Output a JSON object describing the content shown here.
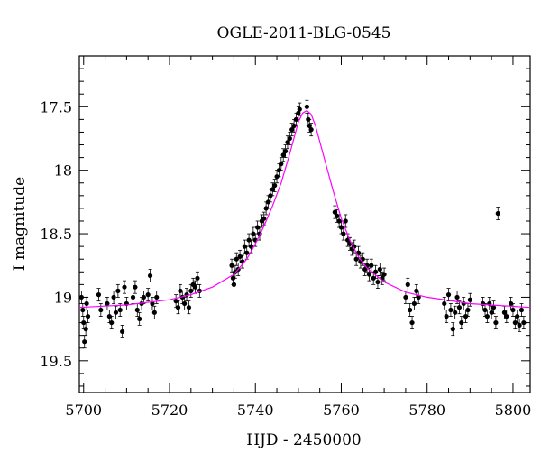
{
  "chart_data": {
    "type": "scatter",
    "title": "OGLE-2011-BLG-0545",
    "xlabel": "HJD - 2450000",
    "ylabel": "I magnitude",
    "xlim": [
      5699,
      5804
    ],
    "ylim": [
      19.75,
      17.1
    ],
    "y_inverted": true,
    "xticks": [
      "5700",
      "5720",
      "5740",
      "5760",
      "5780",
      "5800"
    ],
    "yticks": [
      "17.5",
      "18",
      "18.5",
      "19",
      "19.5"
    ],
    "grid": false,
    "colors": {
      "points": "#000000",
      "model": "#ff00ff"
    },
    "model": {
      "name": "",
      "x": [
        5699,
        5710,
        5720,
        5725,
        5730,
        5735,
        5738,
        5740,
        5742,
        5744,
        5746,
        5748,
        5750,
        5751,
        5752,
        5753,
        5754,
        5756,
        5758,
        5760,
        5762,
        5764,
        5766,
        5770,
        5775,
        5780,
        5790,
        5804
      ],
      "y": [
        19.08,
        19.06,
        19.02,
        18.98,
        18.92,
        18.82,
        18.7,
        18.58,
        18.44,
        18.28,
        18.1,
        17.87,
        17.62,
        17.55,
        17.53,
        17.56,
        17.65,
        17.9,
        18.15,
        18.38,
        18.55,
        18.68,
        18.77,
        18.88,
        18.96,
        19.0,
        19.05,
        19.08
      ]
    },
    "points": [
      {
        "x": 5699.5,
        "y": 19.0
      },
      {
        "x": 5699.8,
        "y": 19.1
      },
      {
        "x": 5700.0,
        "y": 19.2
      },
      {
        "x": 5700.2,
        "y": 19.35
      },
      {
        "x": 5700.5,
        "y": 19.25
      },
      {
        "x": 5700.7,
        "y": 19.05
      },
      {
        "x": 5701.0,
        "y": 19.15
      },
      {
        "x": 5703.5,
        "y": 18.98
      },
      {
        "x": 5704.0,
        "y": 19.1
      },
      {
        "x": 5705.5,
        "y": 19.05
      },
      {
        "x": 5706.0,
        "y": 19.15
      },
      {
        "x": 5706.5,
        "y": 19.2
      },
      {
        "x": 5707.0,
        "y": 19.0
      },
      {
        "x": 5707.5,
        "y": 19.12
      },
      {
        "x": 5708.0,
        "y": 18.95
      },
      {
        "x": 5708.5,
        "y": 19.1
      },
      {
        "x": 5709.0,
        "y": 19.27
      },
      {
        "x": 5709.5,
        "y": 18.92
      },
      {
        "x": 5710.0,
        "y": 19.05
      },
      {
        "x": 5711.5,
        "y": 19.0
      },
      {
        "x": 5712.0,
        "y": 18.92
      },
      {
        "x": 5712.5,
        "y": 19.1
      },
      {
        "x": 5713.0,
        "y": 19.17
      },
      {
        "x": 5713.5,
        "y": 19.05
      },
      {
        "x": 5714.0,
        "y": 19.0
      },
      {
        "x": 5715.0,
        "y": 18.98
      },
      {
        "x": 5715.5,
        "y": 18.83
      },
      {
        "x": 5716.0,
        "y": 19.05
      },
      {
        "x": 5716.5,
        "y": 19.12
      },
      {
        "x": 5717.0,
        "y": 19.0
      },
      {
        "x": 5721.5,
        "y": 19.03
      },
      {
        "x": 5722.0,
        "y": 19.08
      },
      {
        "x": 5722.5,
        "y": 18.95
      },
      {
        "x": 5723.0,
        "y": 19.0
      },
      {
        "x": 5723.5,
        "y": 19.05
      },
      {
        "x": 5724.0,
        "y": 18.98
      },
      {
        "x": 5724.5,
        "y": 19.08
      },
      {
        "x": 5725.0,
        "y": 18.95
      },
      {
        "x": 5725.5,
        "y": 18.9
      },
      {
        "x": 5726.0,
        "y": 18.92
      },
      {
        "x": 5726.5,
        "y": 18.85
      },
      {
        "x": 5727.0,
        "y": 18.95
      },
      {
        "x": 5734.5,
        "y": 18.75
      },
      {
        "x": 5734.8,
        "y": 18.85
      },
      {
        "x": 5735.0,
        "y": 18.9
      },
      {
        "x": 5735.3,
        "y": 18.8
      },
      {
        "x": 5735.6,
        "y": 18.7
      },
      {
        "x": 5736.0,
        "y": 18.78
      },
      {
        "x": 5736.4,
        "y": 18.68
      },
      {
        "x": 5737.0,
        "y": 18.72
      },
      {
        "x": 5737.5,
        "y": 18.6
      },
      {
        "x": 5738.0,
        "y": 18.65
      },
      {
        "x": 5738.5,
        "y": 18.55
      },
      {
        "x": 5739.0,
        "y": 18.6
      },
      {
        "x": 5739.5,
        "y": 18.5
      },
      {
        "x": 5740.0,
        "y": 18.55
      },
      {
        "x": 5740.5,
        "y": 18.45
      },
      {
        "x": 5741.0,
        "y": 18.5
      },
      {
        "x": 5741.5,
        "y": 18.4
      },
      {
        "x": 5742.0,
        "y": 18.38
      },
      {
        "x": 5742.5,
        "y": 18.3
      },
      {
        "x": 5743.0,
        "y": 18.25
      },
      {
        "x": 5743.5,
        "y": 18.2
      },
      {
        "x": 5744.0,
        "y": 18.15
      },
      {
        "x": 5744.5,
        "y": 18.12
      },
      {
        "x": 5745.0,
        "y": 18.05
      },
      {
        "x": 5745.5,
        "y": 18.0
      },
      {
        "x": 5746.0,
        "y": 17.95
      },
      {
        "x": 5746.5,
        "y": 17.88
      },
      {
        "x": 5747.0,
        "y": 17.85
      },
      {
        "x": 5747.5,
        "y": 17.78
      },
      {
        "x": 5748.0,
        "y": 17.75
      },
      {
        "x": 5748.5,
        "y": 17.68
      },
      {
        "x": 5749.0,
        "y": 17.65
      },
      {
        "x": 5749.5,
        "y": 17.6
      },
      {
        "x": 5750.0,
        "y": 17.55
      },
      {
        "x": 5750.3,
        "y": 17.52
      },
      {
        "x": 5752.0,
        "y": 17.5
      },
      {
        "x": 5752.3,
        "y": 17.6
      },
      {
        "x": 5752.6,
        "y": 17.65
      },
      {
        "x": 5753.0,
        "y": 17.68
      },
      {
        "x": 5758.5,
        "y": 18.33
      },
      {
        "x": 5759.0,
        "y": 18.36
      },
      {
        "x": 5759.5,
        "y": 18.4
      },
      {
        "x": 5760.0,
        "y": 18.45
      },
      {
        "x": 5760.5,
        "y": 18.5
      },
      {
        "x": 5761.0,
        "y": 18.4
      },
      {
        "x": 5761.5,
        "y": 18.55
      },
      {
        "x": 5762.0,
        "y": 18.58
      },
      {
        "x": 5762.5,
        "y": 18.62
      },
      {
        "x": 5763.0,
        "y": 18.6
      },
      {
        "x": 5763.5,
        "y": 18.7
      },
      {
        "x": 5764.0,
        "y": 18.65
      },
      {
        "x": 5764.5,
        "y": 18.72
      },
      {
        "x": 5765.0,
        "y": 18.7
      },
      {
        "x": 5765.5,
        "y": 18.78
      },
      {
        "x": 5766.0,
        "y": 18.75
      },
      {
        "x": 5766.5,
        "y": 18.82
      },
      {
        "x": 5767.0,
        "y": 18.75
      },
      {
        "x": 5767.5,
        "y": 18.85
      },
      {
        "x": 5768.0,
        "y": 18.8
      },
      {
        "x": 5768.5,
        "y": 18.88
      },
      {
        "x": 5769.0,
        "y": 18.78
      },
      {
        "x": 5769.5,
        "y": 18.85
      },
      {
        "x": 5770.0,
        "y": 18.82
      },
      {
        "x": 5775.0,
        "y": 19.0
      },
      {
        "x": 5775.5,
        "y": 18.9
      },
      {
        "x": 5776.0,
        "y": 19.1
      },
      {
        "x": 5776.5,
        "y": 19.2
      },
      {
        "x": 5777.0,
        "y": 19.05
      },
      {
        "x": 5777.5,
        "y": 18.95
      },
      {
        "x": 5778.0,
        "y": 19.0
      },
      {
        "x": 5784.0,
        "y": 19.05
      },
      {
        "x": 5784.5,
        "y": 19.15
      },
      {
        "x": 5785.0,
        "y": 18.98
      },
      {
        "x": 5785.5,
        "y": 19.1
      },
      {
        "x": 5786.0,
        "y": 19.25
      },
      {
        "x": 5786.5,
        "y": 19.12
      },
      {
        "x": 5787.0,
        "y": 19.0
      },
      {
        "x": 5787.5,
        "y": 19.08
      },
      {
        "x": 5788.0,
        "y": 19.2
      },
      {
        "x": 5788.5,
        "y": 19.05
      },
      {
        "x": 5789.0,
        "y": 19.15
      },
      {
        "x": 5789.5,
        "y": 19.1
      },
      {
        "x": 5790.0,
        "y": 19.02
      },
      {
        "x": 5793.0,
        "y": 19.05
      },
      {
        "x": 5793.5,
        "y": 19.1
      },
      {
        "x": 5794.0,
        "y": 19.15
      },
      {
        "x": 5794.5,
        "y": 19.05
      },
      {
        "x": 5795.0,
        "y": 19.12
      },
      {
        "x": 5795.5,
        "y": 19.08
      },
      {
        "x": 5796.0,
        "y": 19.2
      },
      {
        "x": 5796.5,
        "y": 18.34
      },
      {
        "x": 5798.0,
        "y": 19.12
      },
      {
        "x": 5798.5,
        "y": 19.15
      },
      {
        "x": 5799.5,
        "y": 19.05
      },
      {
        "x": 5800.0,
        "y": 19.1
      },
      {
        "x": 5800.5,
        "y": 19.2
      },
      {
        "x": 5801.0,
        "y": 19.15
      },
      {
        "x": 5801.5,
        "y": 19.22
      },
      {
        "x": 5802.0,
        "y": 19.1
      },
      {
        "x": 5802.5,
        "y": 19.2
      }
    ],
    "error": 0.05
  }
}
